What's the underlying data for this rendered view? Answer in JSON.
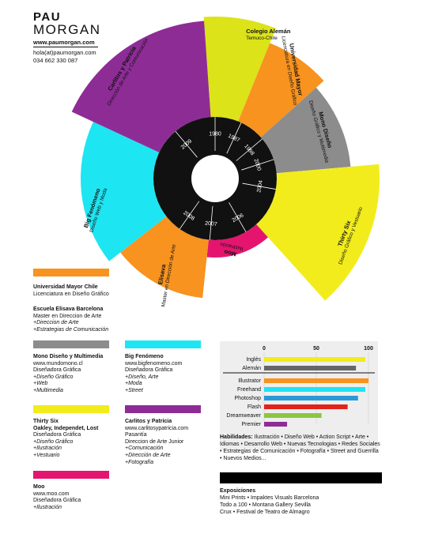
{
  "header": {
    "name_first": "PAU",
    "name_last": "MORGAN",
    "website": "www.paumorgan.com",
    "email": "hola(at)paumorgan.com",
    "phone": "034 662 330 087"
  },
  "wheel": {
    "years": [
      "1980",
      "1987",
      "1998",
      "2000",
      "2004",
      "2006",
      "2007",
      "2008",
      "2009"
    ],
    "segments": [
      {
        "title": "Colegio Alemán",
        "subtitle": "Temuco-Chile",
        "color": "#dce319"
      },
      {
        "title": "Universidad Mayor",
        "subtitle": "Licenciatura en Diseño Gráfico",
        "color": "#f7931e"
      },
      {
        "title": "Mono Diseño",
        "subtitle": "Diseño Gráfico y Multimedia",
        "color": "#8c8c8c"
      },
      {
        "title": "Thirty Six",
        "subtitle": "Diseño Gráfico y Vestuario",
        "color": "#f2ec1c"
      },
      {
        "title": "Moo",
        "subtitle": "Ilustración",
        "color": "#e5156f"
      },
      {
        "title": "Elisava",
        "subtitle": "Master en Dirección de Arte",
        "color": "#f7931e"
      },
      {
        "title": "Big Fenómeno",
        "subtitle": "Diseño Web y Moda",
        "color": "#1ee5f2"
      },
      {
        "title": "Carlitos y Patricia",
        "subtitle": "Dirección de Arte y Comunicación",
        "color": "#8e2c96"
      }
    ]
  },
  "experience": [
    {
      "color": "#f7931e",
      "title": "Universidad Mayor Chile",
      "lines": [
        "Licenciatura en Diseño Gráfico"
      ],
      "italic": []
    },
    {
      "color": "",
      "title": "Escuela Elisava Barcelona",
      "lines": [
        "Master en Direccion de Arte"
      ],
      "italic": [
        "+Direccion de Arte",
        "+Estrategias de Comunicación"
      ]
    },
    {
      "color": "#8c8c8c",
      "title": "Mono Diseño y Multimedia",
      "lines": [
        "www.mundomono.cl",
        "Diseñadora Gráfica"
      ],
      "italic": [
        "+Diseño Gráfico",
        "+Web",
        "+Multimedia"
      ]
    },
    {
      "color": "#1ee5f2",
      "title": "Big Fenómeno",
      "lines": [
        "www.bigfenomeno.com",
        "Diseñadora Gráfica"
      ],
      "italic": [
        "+Diseño, Arte",
        "+Moda",
        "+Street"
      ]
    },
    {
      "color": "#f2ec1c",
      "title": "Thirty Six",
      "lines": [
        "Oakley, Independet, Lost",
        "Diseñadora Gráfica"
      ],
      "italic": [
        "+Diseño Gráfico",
        "+Ilustración",
        "+Vestuario"
      ]
    },
    {
      "color": "#8e2c96",
      "title": "Carlitos y Patricia",
      "lines": [
        "www.carlitosypatricia.com",
        "Pasantía",
        "Direccion de Arte Junior"
      ],
      "italic": [
        "+Comunicación",
        "+Dirección de Arte",
        "+Fotografía"
      ]
    },
    {
      "color": "#e5156f",
      "title": "Moo",
      "lines": [
        "www.moo.com",
        "Diseñadora Gráfica"
      ],
      "italic": [
        "+Ilustración"
      ]
    }
  ],
  "chart_data": {
    "type": "bar",
    "orientation": "horizontal",
    "xlim": [
      0,
      100
    ],
    "ticks": [
      "0",
      "50",
      "100"
    ],
    "grid": true,
    "categories": [
      "Inglés",
      "Alemán",
      "Illustrator",
      "Freehand",
      "Photoshop",
      "Flash",
      "Dreamweaver",
      "Premier"
    ],
    "values": [
      97,
      88,
      100,
      97,
      90,
      80,
      55,
      22
    ],
    "colors": [
      "#f2ec1c",
      "#666666",
      "#f7931e",
      "#1ee5f2",
      "#2a9ad6",
      "#e2231a",
      "#8cc63f",
      "#8e2c96"
    ]
  },
  "skills": {
    "label": "Habilidades:",
    "text": "Ilustración • Diseño Web • Action Script • Arte • Idiomas • Desarrollo Web • Nuevas Tecnologias • Redes Sociales • Estrategias de Comunicación • Fotografía • Street and Guerrilla • Nuevos Medios..."
  },
  "exhibitions": {
    "title": "Exposiciones",
    "items": [
      "Mini Prints • Impaktes Visuals Barcelona",
      "Todo a 100 • Montana Gallery Sevilla",
      "Crux • Festival de Teatro de Almagro"
    ]
  }
}
